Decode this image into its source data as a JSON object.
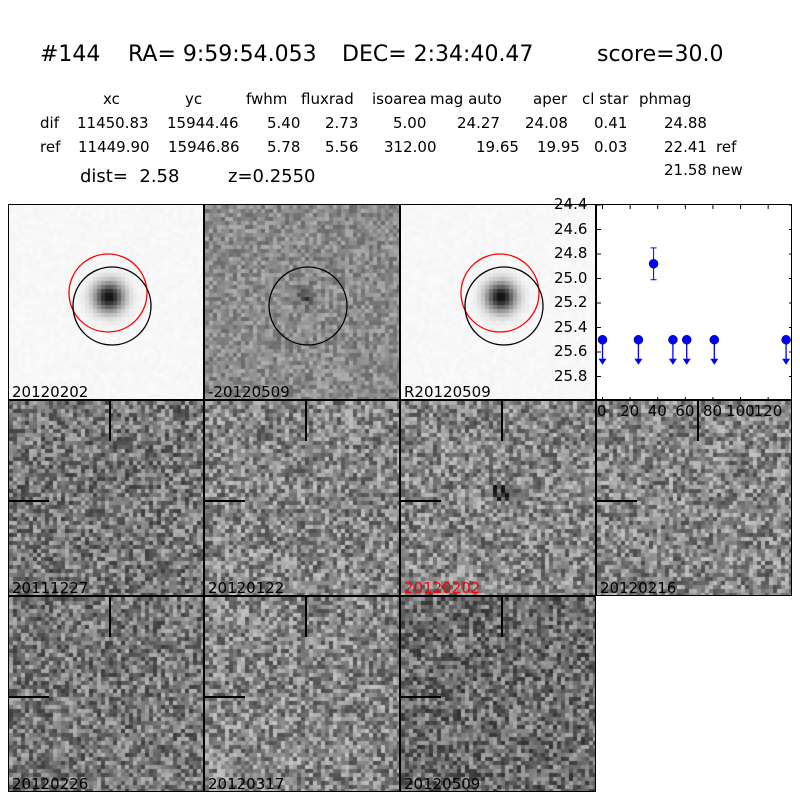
{
  "title": {
    "id": "#144",
    "ra": "RA= 9:59:54.053",
    "dec": "DEC= 2:34:40.47",
    "score": "score=30.0"
  },
  "table": {
    "headers": [
      "xc",
      "yc",
      "fwhm",
      "fluxrad",
      "isoarea",
      "mag auto",
      "aper",
      "cl star",
      "phmag"
    ],
    "rows": [
      {
        "label": "dif",
        "values": [
          "11450.83",
          "15944.46",
          "5.40",
          "2.73",
          "5.00",
          "24.27",
          "24.08",
          "0.41",
          "24.88"
        ],
        "suffix": ""
      },
      {
        "label": "ref",
        "values": [
          "11449.90",
          "15946.86",
          "5.78",
          "5.56",
          "312.00",
          "19.65",
          "19.95",
          "0.03",
          "22.41"
        ],
        "suffix": "ref"
      }
    ],
    "new_mag": "21.58 new",
    "dist": "dist=  2.58",
    "z": "z=0.2550"
  },
  "stamps": [
    {
      "label": "20120202",
      "kind": "ref",
      "circles": true,
      "label_color": "#000000"
    },
    {
      "label": "-20120509",
      "kind": "diff",
      "circles": true,
      "label_color": "#000000"
    },
    {
      "label": "R20120509",
      "kind": "ref",
      "circles": true,
      "label_color": "#000000"
    },
    {
      "label": "20111227",
      "kind": "noise",
      "label_color": "#000000"
    },
    {
      "label": "20120122",
      "kind": "noise",
      "label_color": "#000000"
    },
    {
      "label": "20120202",
      "kind": "noise",
      "label_color": "#ff0000"
    },
    {
      "label": "20120216",
      "kind": "noise",
      "label_color": "#000000"
    },
    {
      "label": "20120226",
      "kind": "noise",
      "label_color": "#000000"
    },
    {
      "label": "20120317",
      "kind": "noise",
      "label_color": "#000000"
    },
    {
      "label": "20120509",
      "kind": "noise",
      "label_color": "#000000"
    }
  ],
  "chart_data": {
    "type": "scatter",
    "xlim": [
      -4,
      138
    ],
    "ylim": [
      26.0,
      24.4
    ],
    "y_inverted": true,
    "xticks": [
      "0",
      "20",
      "40",
      "60",
      "80",
      "100",
      "120"
    ],
    "yticks": [
      "24.4",
      "24.6",
      "24.8",
      "25.0",
      "25.2",
      "25.4",
      "25.6",
      "25.8"
    ],
    "color": "#0000ff",
    "detections": [
      {
        "x": 37,
        "y": 24.88,
        "err": 0.13
      }
    ],
    "upper_limits": [
      {
        "x": 0,
        "y": 25.5
      },
      {
        "x": 26,
        "y": 25.5
      },
      {
        "x": 51,
        "y": 25.5
      },
      {
        "x": 61,
        "y": 25.5
      },
      {
        "x": 81,
        "y": 25.5
      },
      {
        "x": 133,
        "y": 25.5
      }
    ]
  }
}
